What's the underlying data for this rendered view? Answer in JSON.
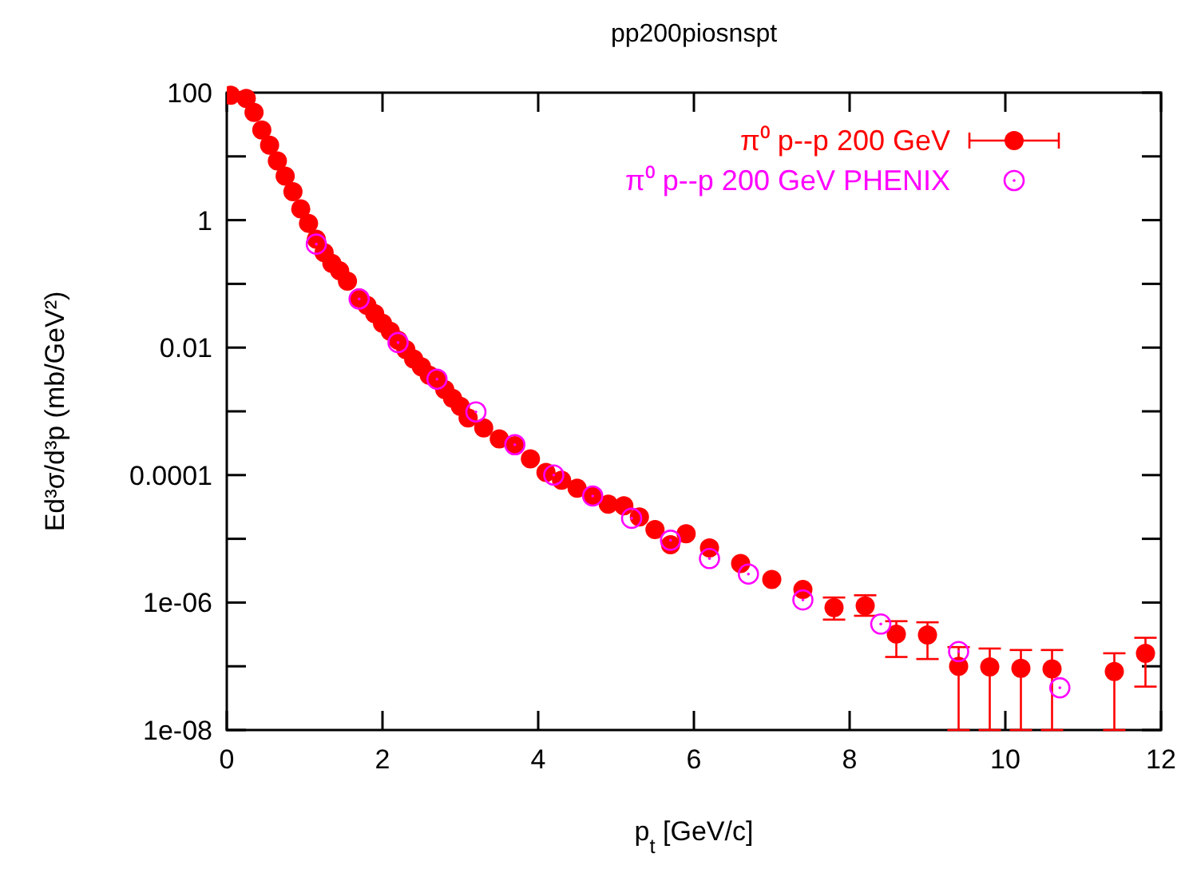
{
  "chart_data": {
    "type": "scatter",
    "title": "pp200piosnspt",
    "xlabel": "p$_{t}$ [GeV/c]",
    "ylabel": "Ed³σ/d³p      (mb/GeV²)",
    "log": "y",
    "xlim": [
      0,
      12
    ],
    "xticks": [
      0,
      2,
      4,
      6,
      8,
      10,
      12
    ],
    "ylim": [
      1e-08,
      100
    ],
    "yticks": [
      100,
      {
        "value": 10,
        "label": null
      },
      1,
      {
        "value": 0.1,
        "label": null
      },
      0.01,
      {
        "value": 0.001,
        "label": null
      },
      0.0001,
      {
        "value": 1e-05,
        "label": null
      },
      {
        "value": 1e-06,
        "label": "1e-06"
      },
      {
        "value": 1e-07,
        "label": null
      },
      {
        "value": 1e-08,
        "label": "1e-08"
      }
    ],
    "grid": false,
    "legend": "top right",
    "marker": "circle",
    "series": [
      {
        "name": "π⁰  p--p 200 GeV",
        "color": "#ff0000",
        "x": [
          0.05,
          0.25,
          0.35,
          0.45,
          0.55,
          0.65,
          0.75,
          0.85,
          0.95,
          1.05,
          1.15,
          1.25,
          1.35,
          1.45,
          1.55,
          1.7,
          1.8,
          1.9,
          2.0,
          2.1,
          2.2,
          2.3,
          2.4,
          2.5,
          2.6,
          2.7,
          2.8,
          2.9,
          3.0,
          3.1,
          3.3,
          3.5,
          3.7,
          3.9,
          4.1,
          4.3,
          4.5,
          4.7,
          4.9,
          5.1,
          5.3,
          5.5,
          5.7,
          5.9,
          6.2,
          6.6,
          7.0,
          7.4,
          7.8,
          8.2,
          8.6,
          9.0,
          9.4,
          9.8,
          10.2,
          10.6,
          11.4,
          11.8
        ],
        "values": [
          91,
          81,
          49,
          26,
          15,
          8.5,
          4.9,
          2.8,
          1.5,
          0.89,
          0.5,
          0.31,
          0.21,
          0.16,
          0.11,
          0.06,
          0.046,
          0.034,
          0.024,
          0.018,
          0.013,
          0.0093,
          0.0066,
          0.005,
          0.0037,
          0.0031,
          0.0022,
          0.0016,
          0.0012,
          0.00079,
          0.00055,
          0.00037,
          0.00029,
          0.00018,
          0.00011,
          8.3e-05,
          6.2e-05,
          4.7e-05,
          3.5e-05,
          3.3e-05,
          2.2e-05,
          1.4e-05,
          8.1e-06,
          1.2e-05,
          7.2e-06,
          4.1e-06,
          2.3e-06,
          1.6e-06,
          8.3e-07,
          8.9e-07,
          3.2e-07,
          3.1e-07,
          1e-07,
          9.8e-08,
          9.3e-08,
          9.1e-08,
          8.3e-08,
          1.6e-07
        ],
        "errors": [
          null,
          null,
          null,
          null,
          null,
          null,
          null,
          null,
          null,
          null,
          null,
          null,
          null,
          null,
          null,
          null,
          null,
          null,
          null,
          null,
          null,
          null,
          null,
          null,
          null,
          null,
          null,
          null,
          null,
          null,
          null,
          null,
          null,
          null,
          null,
          null,
          null,
          null,
          null,
          null,
          null,
          null,
          null,
          null,
          null,
          null,
          null,
          null,
          [
            5.4e-07,
            1.2e-06
          ],
          [
            6.2e-07,
            1.3e-06
          ],
          [
            1.4e-07,
            5.1e-07
          ],
          [
            1.3e-07,
            4.9e-07
          ],
          [
            1e-08,
            2e-07
          ],
          [
            1e-08,
            1.9e-07
          ],
          [
            1e-08,
            1.8e-07
          ],
          [
            1e-08,
            1.8e-07
          ],
          [
            1e-08,
            1.6e-07
          ],
          [
            4.8e-08,
            2.8e-07
          ]
        ]
      },
      {
        "name": "π⁰   p--p 200 GeV PHENIX",
        "color": "#ff00ff",
        "x": [
          1.15,
          1.7,
          2.2,
          2.7,
          3.2,
          3.7,
          4.2,
          4.7,
          5.2,
          5.7,
          6.2,
          6.7,
          7.4,
          8.4,
          9.4,
          10.7
        ],
        "values": [
          0.42,
          0.058,
          0.012,
          0.0032,
          0.00098,
          0.0003,
          0.0001,
          4.7e-05,
          2.1e-05,
          9.5e-06,
          4.9e-06,
          2.8e-06,
          1.1e-06,
          4.6e-07,
          1.7e-07,
          4.6e-08
        ]
      }
    ]
  }
}
